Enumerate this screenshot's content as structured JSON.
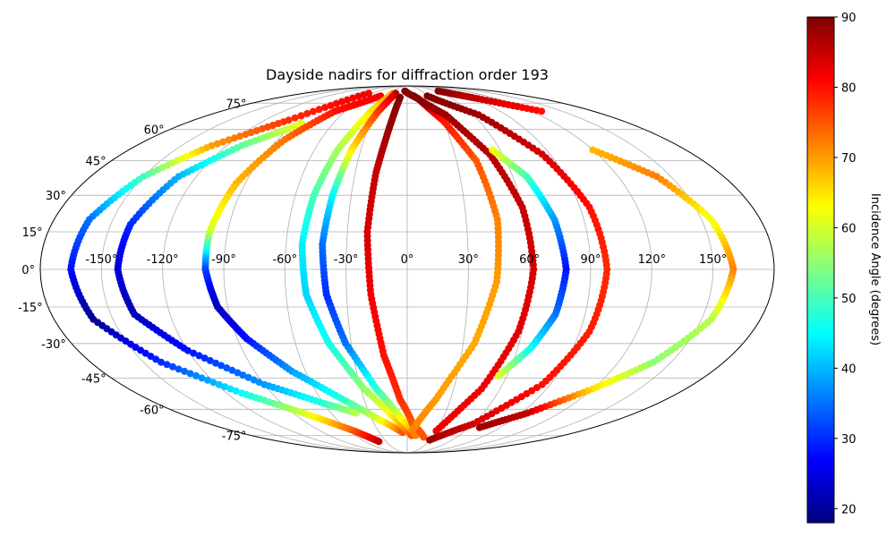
{
  "chart_data": {
    "type": "scatter",
    "projection": "mollweide",
    "title": "Dayside nadirs for diffraction order 193",
    "grid": true,
    "lon_ticks": [
      -150,
      -120,
      -90,
      -60,
      -30,
      0,
      30,
      60,
      90,
      120,
      150
    ],
    "lon_tick_labels": [
      "-150°",
      "-120°",
      "-90°",
      "-60°",
      "-30°",
      "0°",
      "30°",
      "60°",
      "90°",
      "120°",
      "150°"
    ],
    "lat_ticks": [
      75,
      60,
      45,
      30,
      15,
      0,
      -15,
      -30,
      -45,
      -60,
      -75
    ],
    "lat_tick_labels": [
      "75°",
      "60°",
      "45°",
      "30°",
      "15°",
      "0°",
      "-15°",
      "-30°",
      "-45°",
      "-60°",
      "-75°"
    ],
    "xlim": [
      -180,
      180
    ],
    "ylim": [
      -90,
      90
    ],
    "colorbar": {
      "label": "Incidence Angle (degrees)",
      "colormap": "jet",
      "vmin": 18,
      "vmax": 90,
      "ticks": [
        20,
        30,
        40,
        50,
        60,
        70,
        80,
        90
      ],
      "tick_labels": [
        "20",
        "30",
        "40",
        "50",
        "60",
        "70",
        "80",
        "90"
      ]
    },
    "series": [
      {
        "points": [
          {
            "lon": -67,
            "lat": 82,
            "c": 82
          },
          {
            "lon": -100,
            "lat": 65,
            "c": 78
          },
          {
            "lon": -130,
            "lat": 52,
            "c": 70
          },
          {
            "lon": -150,
            "lat": 38,
            "c": 50
          },
          {
            "lon": -162,
            "lat": 20,
            "c": 35
          },
          {
            "lon": -165,
            "lat": 0,
            "c": 28
          },
          {
            "lon": -160,
            "lat": -20,
            "c": 19
          },
          {
            "lon": -140,
            "lat": -38,
            "c": 30
          },
          {
            "lon": -110,
            "lat": -52,
            "c": 45
          },
          {
            "lon": -82,
            "lat": -62,
            "c": 60
          },
          {
            "lon": -55,
            "lat": -72,
            "c": 75
          },
          {
            "lon": -40,
            "lat": -79,
            "c": 85
          }
        ]
      },
      {
        "points": [
          {
            "lon": -85,
            "lat": 63,
            "c": 62
          },
          {
            "lon": -110,
            "lat": 52,
            "c": 52
          },
          {
            "lon": -130,
            "lat": 38,
            "c": 40
          },
          {
            "lon": -140,
            "lat": 18,
            "c": 30
          },
          {
            "lon": -142,
            "lat": 0,
            "c": 24
          },
          {
            "lon": -138,
            "lat": -18,
            "c": 22
          },
          {
            "lon": -120,
            "lat": -33,
            "c": 28
          },
          {
            "lon": -90,
            "lat": -48,
            "c": 38
          },
          {
            "lon": -60,
            "lat": -57,
            "c": 48
          },
          {
            "lon": -40,
            "lat": -62,
            "c": 58
          }
        ]
      },
      {
        "points": [
          {
            "lon": -40,
            "lat": 80,
            "c": 82
          },
          {
            "lon": -70,
            "lat": 70,
            "c": 80
          },
          {
            "lon": -85,
            "lat": 55,
            "c": 73
          },
          {
            "lon": -95,
            "lat": 35,
            "c": 68
          },
          {
            "lon": -99,
            "lat": 15,
            "c": 60
          },
          {
            "lon": -99,
            "lat": 0,
            "c": 32
          },
          {
            "lon": -95,
            "lat": -15,
            "c": 22
          },
          {
            "lon": -85,
            "lat": -28,
            "c": 28
          },
          {
            "lon": -68,
            "lat": -42,
            "c": 38
          },
          {
            "lon": -45,
            "lat": -55,
            "c": 48
          },
          {
            "lon": -25,
            "lat": -65,
            "c": 60
          },
          {
            "lon": -5,
            "lat": -73,
            "c": 75
          }
        ]
      },
      {
        "points": [
          {
            "lon": -25,
            "lat": 82,
            "c": 70
          },
          {
            "lon": -35,
            "lat": 70,
            "c": 65
          },
          {
            "lon": -45,
            "lat": 50,
            "c": 57
          },
          {
            "lon": -50,
            "lat": 30,
            "c": 50
          },
          {
            "lon": -52,
            "lat": 10,
            "c": 44
          },
          {
            "lon": -50,
            "lat": -10,
            "c": 42
          },
          {
            "lon": -42,
            "lat": -30,
            "c": 46
          },
          {
            "lon": -28,
            "lat": -50,
            "c": 55
          },
          {
            "lon": -10,
            "lat": -65,
            "c": 65
          },
          {
            "lon": 5,
            "lat": -75,
            "c": 75
          }
        ]
      },
      {
        "points": [
          {
            "lon": -20,
            "lat": 82,
            "c": 86
          },
          {
            "lon": -28,
            "lat": 70,
            "c": 78
          },
          {
            "lon": -36,
            "lat": 50,
            "c": 65
          },
          {
            "lon": -40,
            "lat": 30,
            "c": 45
          },
          {
            "lon": -42,
            "lat": 10,
            "c": 35
          },
          {
            "lon": -40,
            "lat": -10,
            "c": 30
          },
          {
            "lon": -33,
            "lat": -30,
            "c": 35
          },
          {
            "lon": -20,
            "lat": -50,
            "c": 48
          },
          {
            "lon": -5,
            "lat": -65,
            "c": 62
          },
          {
            "lon": 10,
            "lat": -75,
            "c": 72
          }
        ]
      },
      {
        "points": [
          {
            "lon": -10,
            "lat": 79,
            "c": 90
          },
          {
            "lon": -14,
            "lat": 60,
            "c": 88
          },
          {
            "lon": -18,
            "lat": 40,
            "c": 85
          },
          {
            "lon": -20,
            "lat": 15,
            "c": 84
          },
          {
            "lon": -18,
            "lat": -10,
            "c": 82
          },
          {
            "lon": -13,
            "lat": -35,
            "c": 80
          },
          {
            "lon": -5,
            "lat": -55,
            "c": 78
          },
          {
            "lon": 5,
            "lat": -68,
            "c": 75
          },
          {
            "lon": 20,
            "lat": -76,
            "c": 75
          }
        ]
      },
      {
        "points": [
          {
            "lon": -5,
            "lat": 84,
            "c": 90
          },
          {
            "lon": 15,
            "lat": 78,
            "c": 88
          },
          {
            "lon": 30,
            "lat": 65,
            "c": 80
          },
          {
            "lon": 42,
            "lat": 45,
            "c": 75
          },
          {
            "lon": 46,
            "lat": 20,
            "c": 72
          },
          {
            "lon": 44,
            "lat": -5,
            "c": 70
          },
          {
            "lon": 36,
            "lat": -30,
            "c": 69
          },
          {
            "lon": 20,
            "lat": -55,
            "c": 70
          },
          {
            "lon": 5,
            "lat": -72,
            "c": 72
          }
        ]
      },
      {
        "points": [
          {
            "lon": 10,
            "lat": 80,
            "c": 90
          },
          {
            "lon": 35,
            "lat": 68,
            "c": 88
          },
          {
            "lon": 52,
            "lat": 48,
            "c": 86
          },
          {
            "lon": 60,
            "lat": 25,
            "c": 85
          },
          {
            "lon": 62,
            "lat": 0,
            "c": 84
          },
          {
            "lon": 58,
            "lat": -25,
            "c": 83
          },
          {
            "lon": 48,
            "lat": -50,
            "c": 82
          },
          {
            "lon": 30,
            "lat": -72,
            "c": 82
          }
        ]
      },
      {
        "points": [
          {
            "lon": 55,
            "lat": 50,
            "c": 63
          },
          {
            "lon": 68,
            "lat": 38,
            "c": 50
          },
          {
            "lon": 75,
            "lat": 20,
            "c": 38
          },
          {
            "lon": 78,
            "lat": 0,
            "c": 28
          },
          {
            "lon": 75,
            "lat": -18,
            "c": 35
          },
          {
            "lon": 67,
            "lat": -32,
            "c": 45
          },
          {
            "lon": 55,
            "lat": -44,
            "c": 60
          }
        ]
      },
      {
        "points": [
          {
            "lon": 30,
            "lat": 80,
            "c": 90
          },
          {
            "lon": 65,
            "lat": 68,
            "c": 88
          },
          {
            "lon": 85,
            "lat": 48,
            "c": 84
          },
          {
            "lon": 95,
            "lat": 25,
            "c": 80
          },
          {
            "lon": 98,
            "lat": 0,
            "c": 78
          },
          {
            "lon": 95,
            "lat": -25,
            "c": 79
          },
          {
            "lon": 85,
            "lat": -48,
            "c": 80
          },
          {
            "lon": 60,
            "lat": -68,
            "c": 84
          },
          {
            "lon": 30,
            "lat": -78,
            "c": 88
          }
        ]
      },
      {
        "points": [
          {
            "lon": 65,
            "lat": 84,
            "c": 90
          },
          {
            "lon": 95,
            "lat": 78,
            "c": 85
          },
          {
            "lon": 130,
            "lat": 70,
            "c": 80
          }
        ]
      },
      {
        "points": [
          {
            "lon": 120,
            "lat": 50,
            "c": 68
          },
          {
            "lon": 142,
            "lat": 38,
            "c": 72
          },
          {
            "lon": 155,
            "lat": 20,
            "c": 62
          },
          {
            "lon": 160,
            "lat": 0,
            "c": 72
          },
          {
            "lon": 155,
            "lat": -20,
            "c": 58
          },
          {
            "lon": 140,
            "lat": -38,
            "c": 55
          },
          {
            "lon": 120,
            "lat": -50,
            "c": 65
          },
          {
            "lon": 95,
            "lat": -62,
            "c": 85
          },
          {
            "lon": 70,
            "lat": -70,
            "c": 88
          }
        ]
      }
    ]
  }
}
